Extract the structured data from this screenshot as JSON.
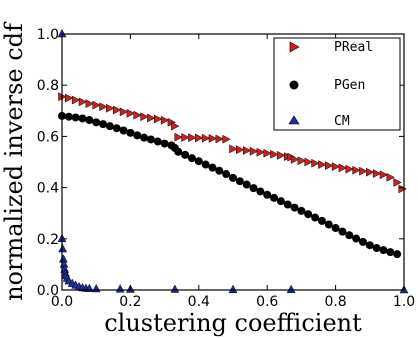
{
  "chart_data": {
    "type": "scatter",
    "xlabel": "clustering coefficient",
    "ylabel": "normalized inverse cdf",
    "xlim": [
      0.0,
      1.0
    ],
    "ylim": [
      0.0,
      1.0
    ],
    "xticks": [
      "0.0",
      "0.2",
      "0.4",
      "0.6",
      "0.8",
      "1.0"
    ],
    "yticks": [
      "0.0",
      "0.2",
      "0.4",
      "0.6",
      "0.8",
      "1.0"
    ],
    "grid": false,
    "legend_position": "top-right",
    "series": [
      {
        "name": "PReal",
        "marker": "triangle-right",
        "color": "#cc1f1f",
        "points": [
          [
            0.0,
            0.755
          ],
          [
            0.02,
            0.75
          ],
          [
            0.04,
            0.742
          ],
          [
            0.06,
            0.735
          ],
          [
            0.08,
            0.728
          ],
          [
            0.1,
            0.722
          ],
          [
            0.12,
            0.716
          ],
          [
            0.14,
            0.71
          ],
          [
            0.16,
            0.703
          ],
          [
            0.18,
            0.696
          ],
          [
            0.2,
            0.69
          ],
          [
            0.22,
            0.683
          ],
          [
            0.24,
            0.677
          ],
          [
            0.26,
            0.672
          ],
          [
            0.28,
            0.668
          ],
          [
            0.3,
            0.663
          ],
          [
            0.32,
            0.655
          ],
          [
            0.33,
            0.64
          ],
          [
            0.34,
            0.597
          ],
          [
            0.36,
            0.596
          ],
          [
            0.38,
            0.595
          ],
          [
            0.4,
            0.594
          ],
          [
            0.42,
            0.593
          ],
          [
            0.44,
            0.592
          ],
          [
            0.46,
            0.59
          ],
          [
            0.48,
            0.589
          ],
          [
            0.5,
            0.551
          ],
          [
            0.52,
            0.548
          ],
          [
            0.54,
            0.545
          ],
          [
            0.56,
            0.542
          ],
          [
            0.58,
            0.538
          ],
          [
            0.6,
            0.534
          ],
          [
            0.62,
            0.53
          ],
          [
            0.64,
            0.526
          ],
          [
            0.66,
            0.521
          ],
          [
            0.67,
            0.519
          ],
          [
            0.68,
            0.51
          ],
          [
            0.7,
            0.505
          ],
          [
            0.72,
            0.5
          ],
          [
            0.74,
            0.495
          ],
          [
            0.76,
            0.49
          ],
          [
            0.78,
            0.486
          ],
          [
            0.8,
            0.482
          ],
          [
            0.82,
            0.477
          ],
          [
            0.84,
            0.472
          ],
          [
            0.86,
            0.468
          ],
          [
            0.88,
            0.464
          ],
          [
            0.9,
            0.46
          ],
          [
            0.92,
            0.455
          ],
          [
            0.94,
            0.45
          ],
          [
            0.96,
            0.44
          ],
          [
            0.98,
            0.42
          ],
          [
            0.995,
            0.395
          ]
        ]
      },
      {
        "name": "PGen",
        "marker": "circle",
        "color": "#000000",
        "points": [
          [
            0.0,
            0.68
          ],
          [
            0.02,
            0.677
          ],
          [
            0.04,
            0.674
          ],
          [
            0.06,
            0.67
          ],
          [
            0.08,
            0.664
          ],
          [
            0.1,
            0.655
          ],
          [
            0.12,
            0.648
          ],
          [
            0.14,
            0.64
          ],
          [
            0.16,
            0.632
          ],
          [
            0.18,
            0.623
          ],
          [
            0.2,
            0.614
          ],
          [
            0.22,
            0.604
          ],
          [
            0.24,
            0.595
          ],
          [
            0.26,
            0.588
          ],
          [
            0.28,
            0.58
          ],
          [
            0.3,
            0.572
          ],
          [
            0.32,
            0.565
          ],
          [
            0.33,
            0.555
          ],
          [
            0.34,
            0.54
          ],
          [
            0.36,
            0.528
          ],
          [
            0.38,
            0.515
          ],
          [
            0.4,
            0.503
          ],
          [
            0.42,
            0.49
          ],
          [
            0.44,
            0.478
          ],
          [
            0.46,
            0.466
          ],
          [
            0.48,
            0.453
          ],
          [
            0.5,
            0.438
          ],
          [
            0.52,
            0.425
          ],
          [
            0.54,
            0.412
          ],
          [
            0.56,
            0.398
          ],
          [
            0.58,
            0.385
          ],
          [
            0.6,
            0.372
          ],
          [
            0.62,
            0.36
          ],
          [
            0.64,
            0.347
          ],
          [
            0.66,
            0.334
          ],
          [
            0.68,
            0.322
          ],
          [
            0.7,
            0.309
          ],
          [
            0.72,
            0.296
          ],
          [
            0.74,
            0.283
          ],
          [
            0.76,
            0.27
          ],
          [
            0.78,
            0.256
          ],
          [
            0.8,
            0.242
          ],
          [
            0.82,
            0.228
          ],
          [
            0.84,
            0.214
          ],
          [
            0.86,
            0.201
          ],
          [
            0.88,
            0.188
          ],
          [
            0.9,
            0.175
          ],
          [
            0.92,
            0.164
          ],
          [
            0.94,
            0.156
          ],
          [
            0.96,
            0.148
          ],
          [
            0.98,
            0.14
          ]
        ]
      },
      {
        "name": "CM",
        "marker": "triangle-up",
        "color": "#1f2f9a",
        "points": [
          [
            0.0,
            1.0
          ],
          [
            0.0,
            0.2
          ],
          [
            0.002,
            0.16
          ],
          [
            0.004,
            0.12
          ],
          [
            0.006,
            0.1
          ],
          [
            0.008,
            0.08
          ],
          [
            0.01,
            0.065
          ],
          [
            0.012,
            0.055
          ],
          [
            0.015,
            0.045
          ],
          [
            0.02,
            0.035
          ],
          [
            0.03,
            0.025
          ],
          [
            0.04,
            0.018
          ],
          [
            0.05,
            0.012
          ],
          [
            0.06,
            0.008
          ],
          [
            0.07,
            0.006
          ],
          [
            0.08,
            0.005
          ],
          [
            0.1,
            0.004
          ],
          [
            0.17,
            0.003
          ],
          [
            0.2,
            0.002
          ],
          [
            0.33,
            0.002
          ],
          [
            0.5,
            0.001
          ],
          [
            0.67,
            0.001
          ],
          [
            1.0,
            0.0
          ]
        ]
      }
    ]
  }
}
